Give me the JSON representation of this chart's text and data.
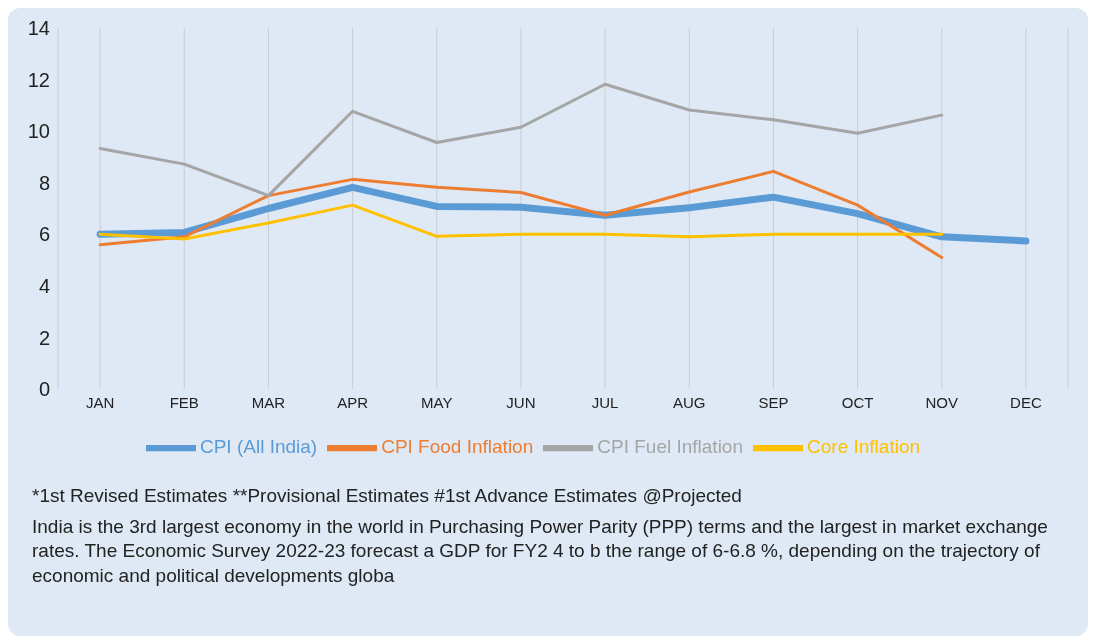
{
  "chart_data": {
    "type": "line",
    "categories": [
      "JAN",
      "FEB",
      "MAR",
      "APR",
      "MAY",
      "JUN",
      "JUL",
      "AUG",
      "SEP",
      "OCT",
      "NOV",
      "DEC"
    ],
    "series": [
      {
        "name": "CPI (All India)",
        "color": "#5b9bd5",
        "values": [
          6.0,
          6.07,
          7.0,
          7.82,
          7.08,
          7.05,
          6.74,
          7.03,
          7.44,
          6.8,
          5.9,
          5.74
        ]
      },
      {
        "name": "CPI Food Inflation",
        "color": "#ed7d31",
        "values": [
          5.59,
          5.9,
          7.5,
          8.13,
          7.82,
          7.62,
          6.74,
          7.64,
          8.44,
          7.13,
          5.1,
          null
        ]
      },
      {
        "name": "CPI Fuel Inflation",
        "color": "#a5a5a5",
        "values": [
          9.33,
          8.72,
          7.5,
          10.77,
          9.56,
          10.15,
          11.82,
          10.82,
          10.44,
          9.92,
          10.62,
          null
        ]
      },
      {
        "name": "Core Inflation",
        "color": "#ffc000",
        "values": [
          6.0,
          5.82,
          6.44,
          7.13,
          5.92,
          6.0,
          6.0,
          5.9,
          6.0,
          6.0,
          6.0,
          null
        ]
      }
    ],
    "ylim": [
      0,
      14
    ],
    "yticks": [
      0,
      2,
      4,
      6,
      8,
      10,
      12,
      14
    ],
    "grid": "x",
    "legend": "bottom",
    "marker": "none",
    "line_style": "solid",
    "annotations": [
      "*1st Revised Estimates **Provisional Estimates #1st Advance Estimates @Projected",
      "India is the 3rd largest economy in the world in Purchasing Power Parity (PPP) terms and the largest in market exchange rates. The Economic Survey 2022-23 forecast a GDP for FY2 4 to b the range of 6-6.8 %, depending on the trajectory of economic and political developments globa"
    ]
  }
}
